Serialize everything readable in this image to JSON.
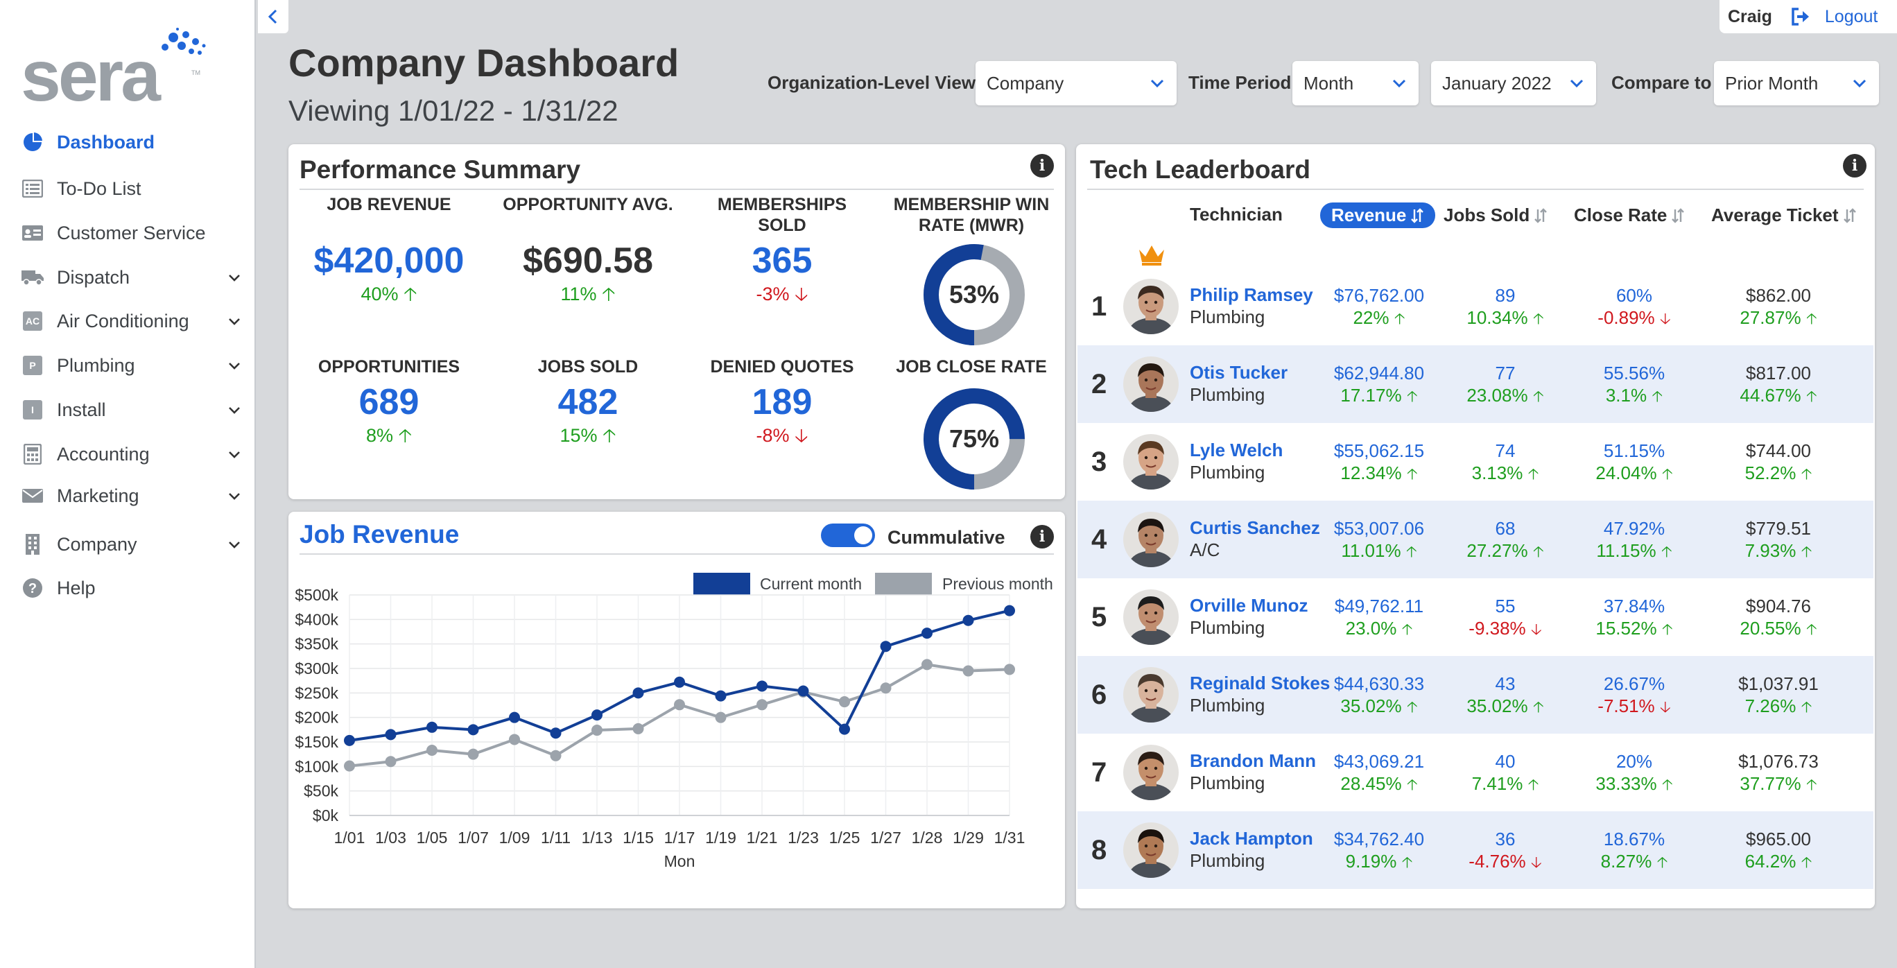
{
  "brand": {
    "logo_text": "sera",
    "trademark": "TM",
    "accent": "#2166d8"
  },
  "sidebar": {
    "items": [
      {
        "label": "Dashboard",
        "icon": "pie-chart-icon",
        "active": true,
        "expandable": false
      },
      {
        "label": "To-Do List",
        "icon": "list-icon",
        "expandable": false
      },
      {
        "label": "Customer Service",
        "icon": "id-card-icon",
        "expandable": false
      },
      {
        "label": "Dispatch",
        "icon": "truck-icon",
        "expandable": true
      },
      {
        "label": "Air Conditioning",
        "icon": "ac-badge-icon",
        "badge": "AC",
        "expandable": true
      },
      {
        "label": "Plumbing",
        "icon": "p-badge-icon",
        "badge": "P",
        "expandable": true
      },
      {
        "label": "Install",
        "icon": "i-badge-icon",
        "badge": "I",
        "expandable": true
      },
      {
        "label": "Accounting",
        "icon": "calculator-icon",
        "expandable": true
      },
      {
        "label": "Marketing",
        "icon": "envelope-icon",
        "expandable": true
      },
      {
        "label": "Company",
        "icon": "building-icon",
        "expandable": true
      },
      {
        "label": "Help",
        "icon": "question-icon",
        "expandable": false
      }
    ]
  },
  "header": {
    "user_name": "Craig",
    "logout_label": "Logout",
    "title": "Company Dashboard",
    "subtitle": "Viewing 1/01/22 - 1/31/22"
  },
  "filters": {
    "org_label": "Organization-Level View",
    "org_value": "Company",
    "period_label": "Time Period",
    "period_value": "Month",
    "month_value": "January 2022",
    "compare_label": "Compare to",
    "compare_value": "Prior Month"
  },
  "performance": {
    "title": "Performance Summary",
    "job_revenue": {
      "label": "JOB REVENUE",
      "value": "$420,000",
      "change": "40%",
      "dir": "up"
    },
    "opportunity_avg": {
      "label": "OPPORTUNITY AVG.",
      "value": "$690.58",
      "change": "11%",
      "dir": "up"
    },
    "memberships_sold": {
      "label_1": "MEMBERSHIPS",
      "label_2": "SOLD",
      "value": "365",
      "change": "-3%",
      "dir": "down"
    },
    "mwr": {
      "label_1": "MEMBERSHIP WIN",
      "label_2": "RATE (MWR)",
      "value": "53%",
      "percent": 53
    },
    "opportunities": {
      "label": "OPPORTUNITIES",
      "value": "689",
      "change": "8%",
      "dir": "up"
    },
    "jobs_sold": {
      "label": "JOBS SOLD",
      "value": "482",
      "change": "15%",
      "dir": "up"
    },
    "denied_quotes": {
      "label": "DENIED QUOTES",
      "value": "189",
      "change": "-8%",
      "dir": "down"
    },
    "close_rate": {
      "label": "JOB CLOSE RATE",
      "value": "75%",
      "percent": 75
    }
  },
  "job_revenue_chart": {
    "title": "Job Revenue",
    "toggle_label": "Cummulative",
    "toggle_on": true
  },
  "chart_data": {
    "type": "line",
    "title": "Job Revenue",
    "xlabel": "Mon",
    "ylabel": "",
    "categories": [
      "1/01",
      "1/03",
      "1/05",
      "1/07",
      "1/09",
      "1/11",
      "1/13",
      "1/15",
      "1/17",
      "1/19",
      "1/21",
      "1/23",
      "1/25",
      "1/27",
      "1/28",
      "1/29",
      "1/31"
    ],
    "y_ticks": [
      "$0k",
      "$50k",
      "$100k",
      "$150k",
      "$200k",
      "$250k",
      "$300k",
      "$350k",
      "$400k",
      "$500k"
    ],
    "ylim": [
      0,
      450
    ],
    "legend": "top-right",
    "series": [
      {
        "name": "Current month",
        "color": "#123f96",
        "values": [
          153,
          165,
          180,
          175,
          200,
          168,
          205,
          250,
          272,
          244,
          264,
          254,
          176,
          345,
          372,
          398,
          418
        ]
      },
      {
        "name": "Previous month",
        "color": "#9ca3ab",
        "values": [
          101,
          110,
          133,
          125,
          155,
          122,
          174,
          177,
          226,
          200,
          226,
          252,
          232,
          260,
          308,
          295,
          298
        ]
      }
    ]
  },
  "leaderboard": {
    "title": "Tech Leaderboard",
    "columns": {
      "technician": "Technician",
      "revenue": "Revenue",
      "jobs_sold": "Jobs Sold",
      "close_rate": "Close Rate",
      "avg_ticket": "Average Ticket"
    },
    "rows": [
      {
        "rank": "1",
        "name": "Philip Ramsey",
        "dept": "Plumbing",
        "revenue": "$76,762.00",
        "revenue_chg": "22%",
        "revenue_dir": "up",
        "jobs": "89",
        "jobs_chg": "10.34%",
        "jobs_dir": "up",
        "close": "60%",
        "close_chg": "-0.89%",
        "close_dir": "down",
        "ticket": "$862.00",
        "ticket_chg": "27.87%",
        "ticket_dir": "up",
        "skin": "#c99a7d",
        "hair": "#3b2a20"
      },
      {
        "rank": "2",
        "name": "Otis Tucker",
        "dept": "Plumbing",
        "revenue": "$62,944.80",
        "revenue_chg": "17.17%",
        "revenue_dir": "up",
        "jobs": "77",
        "jobs_chg": "23.08%",
        "jobs_dir": "up",
        "close": "55.56%",
        "close_chg": "3.1%",
        "close_dir": "up",
        "ticket": "$817.00",
        "ticket_chg": "44.67%",
        "ticket_dir": "up",
        "skin": "#a9765a",
        "hair": "#241810"
      },
      {
        "rank": "3",
        "name": "Lyle Welch",
        "dept": "Plumbing",
        "revenue": "$55,062.15",
        "revenue_chg": "12.34%",
        "revenue_dir": "up",
        "jobs": "74",
        "jobs_chg": "3.13%",
        "jobs_dir": "up",
        "close": "51.15%",
        "close_chg": "24.04%",
        "close_dir": "up",
        "ticket": "$744.00",
        "ticket_chg": "52.2%",
        "ticket_dir": "up",
        "skin": "#d6a486",
        "hair": "#5a3a22"
      },
      {
        "rank": "4",
        "name": "Curtis Sanchez",
        "dept": "A/C",
        "revenue": "$53,007.06",
        "revenue_chg": "11.01%",
        "revenue_dir": "up",
        "jobs": "68",
        "jobs_chg": "27.27%",
        "jobs_dir": "up",
        "close": "47.92%",
        "close_chg": "11.15%",
        "close_dir": "up",
        "ticket": "$779.51",
        "ticket_chg": "7.93%",
        "ticket_dir": "up",
        "skin": "#b58466",
        "hair": "#1b1411"
      },
      {
        "rank": "5",
        "name": "Orville Munoz",
        "dept": "Plumbing",
        "revenue": "$49,762.11",
        "revenue_chg": "23.0%",
        "revenue_dir": "up",
        "jobs": "55",
        "jobs_chg": "-9.38%",
        "jobs_dir": "down",
        "close": "37.84%",
        "close_chg": "15.52%",
        "close_dir": "up",
        "ticket": "$904.76",
        "ticket_chg": "20.55%",
        "ticket_dir": "up",
        "skin": "#c08e70",
        "hair": "#1d1d1d"
      },
      {
        "rank": "6",
        "name": "Reginald Stokes",
        "dept": "Plumbing",
        "revenue": "$44,630.33",
        "revenue_chg": "35.02%",
        "revenue_dir": "up",
        "jobs": "43",
        "jobs_chg": "35.02%",
        "jobs_dir": "up",
        "close": "26.67%",
        "close_chg": "-7.51%",
        "close_dir": "down",
        "ticket": "$1,037.91",
        "ticket_chg": "7.26%",
        "ticket_dir": "up",
        "skin": "#d8b39c",
        "hair": "#4a3a2e"
      },
      {
        "rank": "7",
        "name": "Brandon Mann",
        "dept": "Plumbing",
        "revenue": "$43,069.21",
        "revenue_chg": "28.45%",
        "revenue_dir": "up",
        "jobs": "40",
        "jobs_chg": "7.41%",
        "jobs_dir": "up",
        "close": "20%",
        "close_chg": "33.33%",
        "close_dir": "up",
        "ticket": "$1,076.73",
        "ticket_chg": "37.77%",
        "ticket_dir": "up",
        "skin": "#c48f6b",
        "hair": "#2a1c14"
      },
      {
        "rank": "8",
        "name": "Jack Hampton",
        "dept": "Plumbing",
        "revenue": "$34,762.40",
        "revenue_chg": "9.19%",
        "revenue_dir": "up",
        "jobs": "36",
        "jobs_chg": "-4.76%",
        "jobs_dir": "down",
        "close": "18.67%",
        "close_chg": "8.27%",
        "close_dir": "up",
        "ticket": "$965.00",
        "ticket_chg": "64.2%",
        "ticket_dir": "up",
        "skin": "#b07a55",
        "hair": "#1a120d"
      }
    ]
  }
}
